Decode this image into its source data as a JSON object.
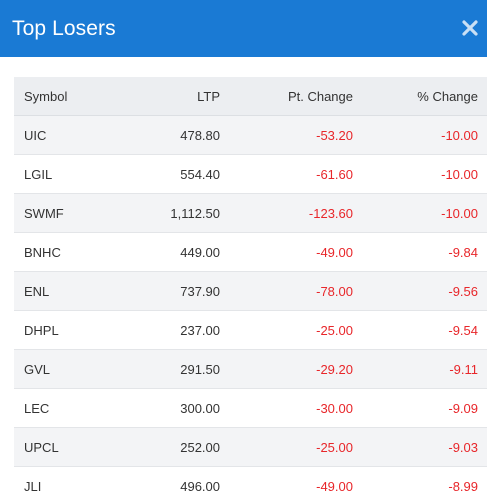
{
  "header": {
    "title": "Top Losers",
    "close_icon": "close-icon"
  },
  "colors": {
    "header_bg": "#1a7ad4",
    "negative": "#e8262a",
    "row_stripe": "#f3f4f6",
    "table_head_bg": "#eceef1"
  },
  "table": {
    "columns": [
      "Symbol",
      "LTP",
      "Pt. Change",
      "% Change"
    ],
    "rows": [
      {
        "symbol": "UIC",
        "ltp": "478.80",
        "pt_change": "-53.20",
        "pct_change": "-10.00"
      },
      {
        "symbol": "LGIL",
        "ltp": "554.40",
        "pt_change": "-61.60",
        "pct_change": "-10.00"
      },
      {
        "symbol": "SWMF",
        "ltp": "1,112.50",
        "pt_change": "-123.60",
        "pct_change": "-10.00"
      },
      {
        "symbol": "BNHC",
        "ltp": "449.00",
        "pt_change": "-49.00",
        "pct_change": "-9.84"
      },
      {
        "symbol": "ENL",
        "ltp": "737.90",
        "pt_change": "-78.00",
        "pct_change": "-9.56"
      },
      {
        "symbol": "DHPL",
        "ltp": "237.00",
        "pt_change": "-25.00",
        "pct_change": "-9.54"
      },
      {
        "symbol": "GVL",
        "ltp": "291.50",
        "pt_change": "-29.20",
        "pct_change": "-9.11"
      },
      {
        "symbol": "LEC",
        "ltp": "300.00",
        "pt_change": "-30.00",
        "pct_change": "-9.09"
      },
      {
        "symbol": "UPCL",
        "ltp": "252.00",
        "pt_change": "-25.00",
        "pct_change": "-9.03"
      },
      {
        "symbol": "JLI",
        "ltp": "496.00",
        "pt_change": "-49.00",
        "pct_change": "-8.99"
      }
    ]
  }
}
